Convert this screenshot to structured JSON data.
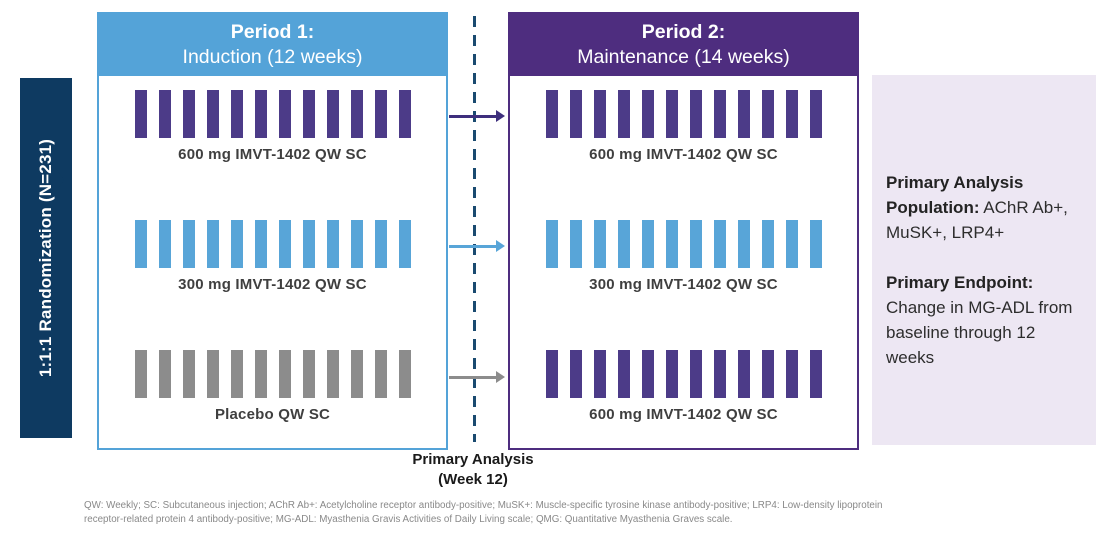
{
  "banner": {
    "label": "1:1:1 Randomization (N=231)",
    "bg_color": "#0E3A61"
  },
  "period1": {
    "title_bold": "Period 1:",
    "title_rest": "Induction (12 weeks)",
    "header_color": "#54A3D8",
    "rows": [
      {
        "label": "600 mg IMVT-1402 QW SC",
        "bar_color": "#4C3B88",
        "bar_count": 12
      },
      {
        "label": "300 mg IMVT-1402 QW SC",
        "bar_color": "#58A5D8",
        "bar_count": 12
      },
      {
        "label": "Placebo QW SC",
        "bar_color": "#8C8C8C",
        "bar_count": 12
      }
    ]
  },
  "period2": {
    "title_bold": "Period 2:",
    "title_rest": "Maintenance (14 weeks)",
    "header_color": "#4E2D7F",
    "rows": [
      {
        "label": "600 mg IMVT-1402 QW SC",
        "bar_color": "#4C3B88",
        "bar_count": 12
      },
      {
        "label": "300 mg IMVT-1402 QW SC",
        "bar_color": "#58A5D8",
        "bar_count": 12
      },
      {
        "label": "600 mg IMVT-1402 QW SC",
        "bar_color": "#4C3B88",
        "bar_count": 12
      }
    ]
  },
  "divider": {
    "color": "#1A4A70"
  },
  "milestone": {
    "line1": "Primary Analysis",
    "line2": "(Week 12)"
  },
  "arrows": {
    "colors": [
      "#3E2F7D",
      "#58A5D8",
      "#8C8C8C"
    ]
  },
  "info_panel": {
    "bg_color": "#EDE7F3",
    "population_label": "Primary Analysis Population:",
    "population_value": " AChR Ab+, MuSK+, LRP4+",
    "endpoint_label": "Primary Endpoint:",
    "endpoint_value": "Change in MG-ADL from baseline through 12 weeks"
  },
  "footnote": "QW: Weekly; SC: Subcutaneous injection; AChR Ab+: Acetylcholine receptor antibody-positive; MuSK+: Muscle-specific tyrosine kinase antibody-positive; LRP4: Low-density lipoprotein receptor-related protein 4 antibody-positive; MG-ADL: Myasthenia Gravis Activities of Daily Living scale; QMG: Quantitative Myasthenia Graves scale."
}
